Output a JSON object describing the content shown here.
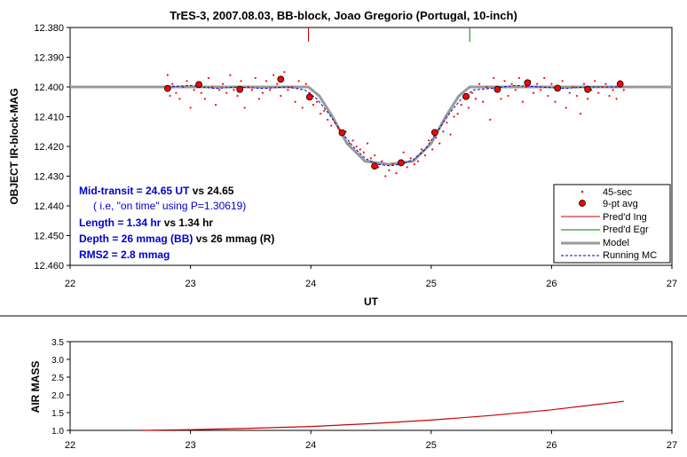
{
  "chart_data": [
    {
      "type": "scatter",
      "title": "TrES-3, 2007.08.03, BB-block, Joao Gregorio (Portugal, 10-inch)",
      "xlabel": "UT",
      "ylabel": "OBJECT IR-block-MAG",
      "xlim": [
        22,
        27
      ],
      "ylim": [
        12.38,
        12.46
      ],
      "y_inverted": true,
      "x_ticks": [
        "22",
        "23",
        "24",
        "25",
        "26",
        "27"
      ],
      "y_ticks": [
        "12.380",
        "12.390",
        "12.400",
        "12.410",
        "12.420",
        "12.430",
        "12.440",
        "12.450",
        "12.460"
      ],
      "grid": false,
      "legend_position": "bottom-right",
      "annotations": [
        {
          "text": "Mid-transit = 24.65 UT",
          "suffix": "  vs 24.65"
        },
        {
          "text": "( i.e,  \"on time\" using P=1.30619)"
        },
        {
          "text": "Length = 1.34 hr",
          "suffix": "  vs 1.34 hr"
        },
        {
          "text": "Depth = 26 mmag (BB)",
          "suffix": " vs 26 mmag (R)"
        },
        {
          "text": "RMS2 = 2.8 mmag",
          "suffix": ""
        }
      ],
      "series": [
        {
          "name": "45-sec",
          "color": "#ff0000",
          "marker": "dot",
          "x": [
            22.81,
            22.83,
            22.85,
            22.88,
            22.91,
            22.94,
            22.97,
            23.0,
            23.03,
            23.06,
            23.09,
            23.12,
            23.15,
            23.18,
            23.21,
            23.24,
            23.27,
            23.3,
            23.33,
            23.36,
            23.39,
            23.42,
            23.45,
            23.48,
            23.51,
            23.54,
            23.57,
            23.6,
            23.63,
            23.66,
            23.69,
            23.72,
            23.75,
            23.78,
            23.81,
            23.84,
            23.87,
            23.9,
            23.93,
            23.96,
            23.99,
            24.02,
            24.05,
            24.08,
            24.11,
            24.14,
            24.17,
            24.2,
            24.23,
            24.26,
            24.29,
            24.32,
            24.35,
            24.38,
            24.41,
            24.44,
            24.47,
            24.5,
            24.53,
            24.56,
            24.59,
            24.62,
            24.65,
            24.68,
            24.71,
            24.74,
            24.77,
            24.8,
            24.83,
            24.86,
            24.89,
            24.92,
            24.95,
            24.98,
            25.01,
            25.04,
            25.07,
            25.1,
            25.13,
            25.16,
            25.19,
            25.22,
            25.25,
            25.28,
            25.31,
            25.34,
            25.37,
            25.4,
            25.43,
            25.46,
            25.49,
            25.52,
            25.55,
            25.58,
            25.61,
            25.64,
            25.67,
            25.7,
            25.73,
            25.76,
            25.79,
            25.82,
            25.85,
            25.88,
            25.91,
            25.94,
            25.97,
            26.0,
            26.03,
            26.06,
            26.09,
            26.12,
            26.15,
            26.18,
            26.21,
            26.24,
            26.27,
            26.3,
            26.33,
            26.36,
            26.39,
            26.42,
            26.45,
            26.48,
            26.51,
            26.54,
            26.57,
            26.6
          ],
          "y": [
            12.396,
            12.403,
            12.399,
            12.402,
            12.404,
            12.4,
            12.398,
            12.407,
            12.401,
            12.399,
            12.402,
            12.404,
            12.397,
            12.4,
            12.406,
            12.401,
            12.399,
            12.402,
            12.396,
            12.401,
            12.403,
            12.398,
            12.407,
            12.4,
            12.401,
            12.397,
            12.404,
            12.402,
            12.398,
            12.401,
            12.396,
            12.399,
            12.403,
            12.395,
            12.401,
            12.4,
            12.405,
            12.398,
            12.407,
            12.399,
            12.402,
            12.406,
            12.405,
            12.409,
            12.408,
            12.411,
            12.413,
            12.412,
            12.414,
            12.416,
            12.415,
            12.419,
            12.418,
            12.42,
            12.421,
            12.422,
            12.419,
            12.424,
            12.423,
            12.427,
            12.425,
            12.43,
            12.428,
            12.426,
            12.429,
            12.425,
            12.422,
            12.427,
            12.424,
            12.426,
            12.425,
            12.421,
            12.423,
            12.418,
            12.421,
            12.417,
            12.419,
            12.415,
            12.412,
            12.416,
            12.41,
            12.409,
            12.406,
            12.404,
            12.407,
            12.402,
            12.404,
            12.399,
            12.405,
            12.4,
            12.411,
            12.397,
            12.401,
            12.404,
            12.398,
            12.403,
            12.399,
            12.401,
            12.397,
            12.405,
            12.4,
            12.398,
            12.402,
            12.399,
            12.401,
            12.397,
            12.403,
            12.399,
            12.405,
            12.401,
            12.398,
            12.407,
            12.402,
            12.4,
            12.403,
            12.409,
            12.399,
            12.404,
            12.401,
            12.398,
            12.402,
            12.4,
            12.399,
            12.403,
            12.401,
            12.404,
            12.398,
            12.401
          ]
        },
        {
          "name": "9-pt avg",
          "color": "#ff0000",
          "marker": "circle",
          "x": [
            22.81,
            23.07,
            23.41,
            23.75,
            23.99,
            24.26,
            24.53,
            24.75,
            25.03,
            25.29,
            25.55,
            25.8,
            26.05,
            26.3,
            26.57
          ],
          "y": [
            12.4005,
            12.3992,
            12.4008,
            12.3974,
            12.4034,
            12.4154,
            12.4266,
            12.4255,
            12.4153,
            12.4032,
            12.4008,
            12.3986,
            12.4004,
            12.4008,
            12.399
          ]
        },
        {
          "name": "Pred'd Ing",
          "color": "#cc0000",
          "marker": "tick",
          "x": [
            23.98
          ]
        },
        {
          "name": "Pred'd Egr",
          "color": "#008000",
          "marker": "tick",
          "x": [
            25.32
          ]
        },
        {
          "name": "Model",
          "color": "#999999",
          "marker": "line",
          "x": [
            22,
            23.98,
            24.07,
            24.18,
            24.3,
            24.45,
            24.65,
            24.85,
            25.0,
            25.12,
            25.23,
            25.32,
            27
          ],
          "y": [
            12.4,
            12.4,
            12.403,
            12.41,
            12.419,
            12.425,
            12.426,
            12.425,
            12.419,
            12.41,
            12.403,
            12.4,
            12.4
          ]
        },
        {
          "name": "Running MC",
          "color": "#0000cc",
          "marker": "dash",
          "x": [
            22.81,
            23.0,
            23.2,
            23.4,
            23.6,
            23.8,
            23.95,
            24.05,
            24.15,
            24.25,
            24.35,
            24.45,
            24.55,
            24.65,
            24.75,
            24.85,
            24.95,
            25.05,
            25.15,
            25.25,
            25.35,
            25.5,
            25.7,
            25.9,
            26.1,
            26.3,
            26.5,
            26.6
          ],
          "y": [
            12.4,
            12.3995,
            12.4005,
            12.4,
            12.4005,
            12.4,
            12.401,
            12.404,
            12.409,
            12.415,
            12.42,
            12.424,
            12.426,
            12.4265,
            12.426,
            12.4245,
            12.421,
            12.415,
            12.409,
            12.404,
            12.401,
            12.4005,
            12.3995,
            12.4,
            12.4005,
            12.4,
            12.4,
            12.4
          ]
        }
      ]
    },
    {
      "type": "line",
      "title": "",
      "xlabel": "",
      "ylabel": "AIR MASS",
      "xlim": [
        22,
        27
      ],
      "ylim": [
        1.0,
        3.5
      ],
      "x_ticks": [
        "22",
        "23",
        "24",
        "25",
        "26",
        "27"
      ],
      "y_ticks": [
        "1.0",
        "1.5",
        "2.0",
        "2.5",
        "3.0",
        "3.5"
      ],
      "grid": false,
      "series": [
        {
          "color": "#cc0000",
          "x": [
            22.6,
            23.0,
            23.5,
            24.0,
            24.5,
            25.0,
            25.5,
            26.0,
            26.3,
            26.6
          ],
          "y": [
            1.0,
            1.02,
            1.06,
            1.11,
            1.19,
            1.29,
            1.42,
            1.58,
            1.7,
            1.82
          ]
        }
      ]
    }
  ]
}
